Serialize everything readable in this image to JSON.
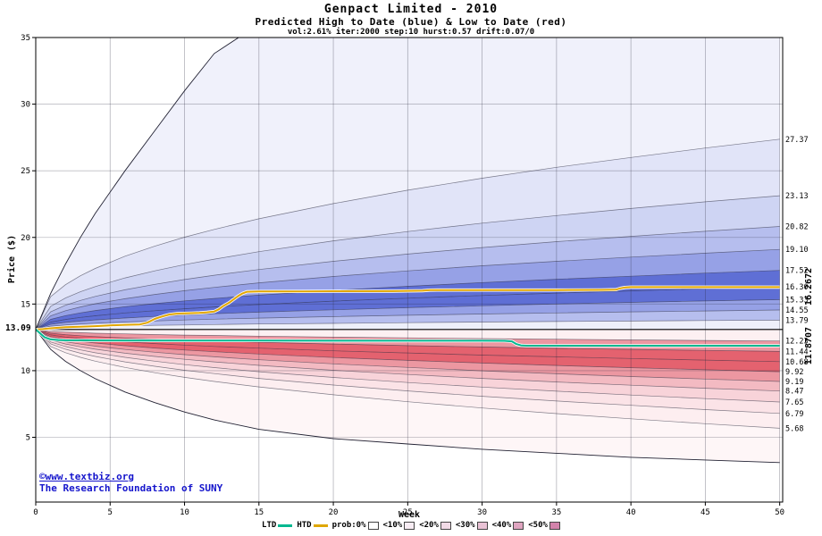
{
  "watermark": {
    "line1": "©www.textbiz.org",
    "line2": "The Research Foundation of SUNY"
  },
  "legend": {
    "items": [
      {
        "label": "LTD",
        "swatch": "line",
        "color": "#00b890",
        "name": "ltd-swatch"
      },
      {
        "label": "HTD",
        "swatch": "line",
        "color": "#dfa700",
        "name": "htd-swatch"
      },
      {
        "label": "prob:0%",
        "swatch": "box",
        "color": "#ffffff",
        "name": "prob-0-swatch"
      },
      {
        "label": "<10%",
        "swatch": "box",
        "color": "#f7ecf3",
        "name": "prob-10-swatch"
      },
      {
        "label": "<20%",
        "swatch": "box",
        "color": "#f1dae6",
        "name": "prob-20-swatch"
      },
      {
        "label": "<30%",
        "swatch": "box",
        "color": "#e9c2d5",
        "name": "prob-30-swatch"
      },
      {
        "label": "<40%",
        "swatch": "box",
        "color": "#dfa5c0",
        "name": "prob-40-swatch"
      },
      {
        "label": "<50%",
        "swatch": "box",
        "color": "#d383ab",
        "name": "prob-50-swatch"
      }
    ]
  },
  "chart_data": {
    "type": "area",
    "title": "Genpact Limited - 2010",
    "subtitle": "Predicted High to Date (blue) &  Low to Date (red)",
    "params": "vol:2.61% iter:2000 step:10 hurst:0.57 drift:0.07/0",
    "xlabel": "Week",
    "ylabel": "Price ($)",
    "start_price": 13.09,
    "start_label": "13.09",
    "xlim": [
      0,
      50.2
    ],
    "ylim": [
      0.14,
      35
    ],
    "x_ticks": [
      0,
      5,
      10,
      15,
      20,
      25,
      30,
      35,
      40,
      45,
      50
    ],
    "y_ticks": [
      5,
      10,
      15,
      20,
      25,
      30,
      35
    ],
    "weeks": [
      0,
      1,
      2,
      3,
      4,
      6,
      8,
      10,
      12,
      15,
      20,
      25,
      30,
      35,
      40,
      45,
      50
    ],
    "curves": {
      "env_max": {
        "env": true,
        "values": [
          13.09,
          15.8,
          18.0,
          20.0,
          21.8,
          25.0,
          28.0,
          31.0,
          33.8,
          36.0,
          36.0,
          36.0,
          36.0,
          36.0,
          36.0,
          36.0,
          36.0
        ]
      },
      "h27": {
        "values": [
          13.09,
          15.55,
          16.45,
          17.12,
          17.67,
          18.59,
          19.34,
          20.02,
          20.6,
          21.4,
          22.54,
          23.54,
          24.44,
          25.26,
          26.0,
          26.71,
          27.37
        ]
      },
      "h23": {
        "values": [
          13.09,
          14.82,
          15.45,
          15.92,
          16.31,
          16.96,
          17.49,
          17.96,
          18.37,
          18.93,
          19.74,
          20.44,
          21.07,
          21.64,
          22.17,
          22.67,
          23.13
        ]
      },
      "h20": {
        "values": [
          13.09,
          14.42,
          14.91,
          15.27,
          15.57,
          16.07,
          16.48,
          16.84,
          17.16,
          17.59,
          18.21,
          18.75,
          19.24,
          19.68,
          20.08,
          20.46,
          20.82
        ]
      },
      "h19": {
        "values": [
          13.09,
          14.12,
          14.5,
          14.78,
          15.02,
          15.4,
          15.72,
          16.0,
          16.25,
          16.59,
          17.07,
          17.49,
          17.87,
          18.21,
          18.52,
          18.82,
          19.1
        ]
      },
      "h17": {
        "values": [
          13.09,
          13.85,
          14.13,
          14.34,
          14.51,
          14.8,
          15.03,
          15.24,
          15.42,
          15.67,
          16.02,
          16.33,
          16.61,
          16.86,
          17.09,
          17.32,
          17.52
        ]
      },
      "h16": {
        "values": [
          13.09,
          13.64,
          13.84,
          14.0,
          14.12,
          14.33,
          14.5,
          14.65,
          14.78,
          14.96,
          15.22,
          15.44,
          15.64,
          15.82,
          15.99,
          16.15,
          16.3
        ]
      },
      "h15": {
        "values": [
          13.09,
          13.48,
          13.62,
          13.72,
          13.81,
          13.95,
          14.07,
          14.18,
          14.27,
          14.39,
          14.57,
          14.73,
          14.87,
          15.0,
          15.12,
          15.23,
          15.33
        ]
      },
      "h14": {
        "values": [
          13.09,
          13.34,
          13.43,
          13.5,
          13.56,
          13.65,
          13.73,
          13.8,
          13.86,
          13.94,
          14.06,
          14.16,
          14.25,
          14.33,
          14.41,
          14.48,
          14.55
        ]
      },
      "h13": {
        "values": [
          13.09,
          13.21,
          13.25,
          13.29,
          13.31,
          13.36,
          13.4,
          13.43,
          13.46,
          13.5,
          13.55,
          13.6,
          13.65,
          13.69,
          13.72,
          13.76,
          13.79
        ]
      },
      "start": {
        "values": [
          13.09,
          13.09,
          13.09,
          13.09,
          13.09,
          13.09,
          13.09,
          13.09,
          13.09,
          13.09,
          13.09,
          13.09,
          13.09,
          13.09,
          13.09,
          13.09,
          13.09
        ]
      },
      "l12": {
        "values": [
          13.09,
          12.94,
          12.89,
          12.85,
          12.81,
          12.76,
          12.71,
          12.67,
          12.64,
          12.59,
          12.52,
          12.46,
          12.41,
          12.36,
          12.31,
          12.27,
          12.23
        ]
      },
      "l11": {
        "values": [
          13.09,
          12.81,
          12.7,
          12.62,
          12.56,
          12.45,
          12.37,
          12.29,
          12.22,
          12.13,
          12.0,
          11.88,
          11.78,
          11.68,
          11.6,
          11.52,
          11.44
        ]
      },
      "l10": {
        "values": [
          13.09,
          12.68,
          12.52,
          12.41,
          12.32,
          12.16,
          12.03,
          11.92,
          11.82,
          11.69,
          11.49,
          11.33,
          11.17,
          11.04,
          10.91,
          10.79,
          10.68
        ]
      },
      "l9b": {
        "values": [
          13.09,
          12.54,
          12.35,
          12.2,
          12.07,
          11.87,
          11.7,
          11.55,
          11.42,
          11.25,
          10.99,
          10.77,
          10.57,
          10.39,
          10.22,
          10.07,
          9.92
        ]
      },
      "l9": {
        "values": [
          13.09,
          12.42,
          12.17,
          11.99,
          11.84,
          11.59,
          11.38,
          11.2,
          11.04,
          10.82,
          10.51,
          10.24,
          9.99,
          9.77,
          9.56,
          9.37,
          9.19
        ]
      },
      "l8": {
        "values": [
          13.09,
          12.3,
          12.0,
          11.79,
          11.61,
          11.31,
          11.07,
          10.85,
          10.66,
          10.4,
          10.03,
          9.71,
          9.42,
          9.15,
          8.91,
          8.68,
          8.47
        ]
      },
      "l7": {
        "values": [
          13.09,
          12.15,
          11.81,
          11.56,
          11.34,
          11.0,
          10.71,
          10.45,
          10.23,
          9.92,
          9.49,
          9.11,
          8.77,
          8.46,
          8.17,
          7.9,
          7.65
        ]
      },
      "l6": {
        "values": [
          13.09,
          12.01,
          11.61,
          11.31,
          11.07,
          10.66,
          10.33,
          10.03,
          9.78,
          9.42,
          8.92,
          8.48,
          8.08,
          7.72,
          7.4,
          7.08,
          6.79
        ]
      },
      "l5": {
        "values": [
          13.09,
          11.82,
          11.35,
          11.0,
          10.71,
          10.24,
          9.85,
          9.5,
          9.19,
          8.78,
          8.19,
          7.67,
          7.2,
          6.78,
          6.39,
          6.02,
          5.68
        ]
      },
      "env_min": {
        "env": true,
        "values": [
          13.09,
          11.6,
          10.7,
          10.0,
          9.4,
          8.4,
          7.6,
          6.9,
          6.3,
          5.6,
          4.9,
          4.5,
          4.1,
          3.8,
          3.5,
          3.3,
          3.1
        ]
      }
    },
    "bands": [
      {
        "upper": "env_max",
        "lower": "h27",
        "color": "#f0f1fb"
      },
      {
        "upper": "h27",
        "lower": "h23",
        "color": "#e1e4f8"
      },
      {
        "upper": "h23",
        "lower": "h20",
        "color": "#ced4f3"
      },
      {
        "upper": "h20",
        "lower": "h19",
        "color": "#b6beee"
      },
      {
        "upper": "h19",
        "lower": "h17",
        "color": "#96a1e6"
      },
      {
        "upper": "h17",
        "lower": "h16",
        "color": "#5f6fd5"
      },
      {
        "upper": "h16",
        "lower": "h15",
        "color": "#5f6fd5"
      },
      {
        "upper": "h15",
        "lower": "h14",
        "color": "#96a1e6"
      },
      {
        "upper": "h14",
        "lower": "h13",
        "color": "#b6beee"
      },
      {
        "upper": "h13",
        "lower": "start",
        "color": "#eef0fa"
      },
      {
        "upper": "start",
        "lower": "l12",
        "color": "#fdf0f2"
      },
      {
        "upper": "l12",
        "lower": "l11",
        "color": "#ec97a1"
      },
      {
        "upper": "l11",
        "lower": "l10",
        "color": "#e4626f"
      },
      {
        "upper": "l10",
        "lower": "l9b",
        "color": "#e4626f"
      },
      {
        "upper": "l9b",
        "lower": "l9",
        "color": "#ec97a1"
      },
      {
        "upper": "l9",
        "lower": "l8",
        "color": "#f3bac2"
      },
      {
        "upper": "l8",
        "lower": "l7",
        "color": "#f8d3d9"
      },
      {
        "upper": "l7",
        "lower": "l6",
        "color": "#fbe3e7"
      },
      {
        "upper": "l6",
        "lower": "l5",
        "color": "#fdeef0"
      },
      {
        "upper": "l5",
        "lower": "env_min",
        "color": "#fef6f7"
      }
    ],
    "right_labels": [
      {
        "text": "27.37",
        "price": 27.37
      },
      {
        "text": "23.13",
        "price": 23.13
      },
      {
        "text": "20.82",
        "price": 20.82
      },
      {
        "text": "19.10",
        "price": 19.1
      },
      {
        "text": "17.52",
        "price": 17.52
      },
      {
        "text": "16.30",
        "price": 16.3
      },
      {
        "text": "15.33",
        "price": 15.33
      },
      {
        "text": "14.55",
        "price": 14.55
      },
      {
        "text": "13.79",
        "price": 13.79
      },
      {
        "text": "12.23",
        "price": 12.23
      },
      {
        "text": "11.44",
        "price": 11.44
      },
      {
        "text": "10.68",
        "price": 10.68
      },
      {
        "text": "9.92",
        "price": 9.92
      },
      {
        "text": "9.19",
        "price": 9.19
      },
      {
        "text": "8.47",
        "price": 8.47
      },
      {
        "text": "7.65",
        "price": 7.65
      },
      {
        "text": "6.79",
        "price": 6.79
      },
      {
        "text": "5.68",
        "price": 5.68
      }
    ],
    "htd": {
      "end_label": "16.2672",
      "end_label_price": 16.3,
      "color": "#e2a600",
      "label_color": "#b8860b",
      "points": [
        [
          0,
          13.09
        ],
        [
          0.5,
          13.12
        ],
        [
          1,
          13.18
        ],
        [
          1.5,
          13.22
        ],
        [
          2,
          13.26
        ],
        [
          3,
          13.3
        ],
        [
          4,
          13.34
        ],
        [
          5,
          13.4
        ],
        [
          6,
          13.44
        ],
        [
          7,
          13.47
        ],
        [
          7.5,
          13.6
        ],
        [
          8,
          13.88
        ],
        [
          8.3,
          14.0
        ],
        [
          8.6,
          14.1
        ],
        [
          9,
          14.22
        ],
        [
          9.5,
          14.28
        ],
        [
          10,
          14.3
        ],
        [
          10.5,
          14.32
        ],
        [
          11,
          14.34
        ],
        [
          11.5,
          14.38
        ],
        [
          12,
          14.44
        ],
        [
          12.3,
          14.6
        ],
        [
          12.6,
          14.85
        ],
        [
          13,
          15.1
        ],
        [
          13.3,
          15.35
        ],
        [
          13.6,
          15.6
        ],
        [
          13.9,
          15.8
        ],
        [
          14.2,
          15.92
        ],
        [
          15,
          15.94
        ],
        [
          18,
          15.95
        ],
        [
          20,
          15.96
        ],
        [
          24,
          15.97
        ],
        [
          26,
          16.0
        ],
        [
          26.5,
          16.04
        ],
        [
          27,
          16.05
        ],
        [
          30,
          16.05
        ],
        [
          35,
          16.05
        ],
        [
          38,
          16.06
        ],
        [
          39,
          16.08
        ],
        [
          39.3,
          16.18
        ],
        [
          39.6,
          16.24
        ],
        [
          40,
          16.27
        ],
        [
          45,
          16.27
        ],
        [
          50,
          16.27
        ]
      ]
    },
    "ltd": {
      "end_label": "11.8707",
      "end_label_price": 11.87,
      "color": "#00b890",
      "label_color": "#009a70",
      "points": [
        [
          0,
          13.09
        ],
        [
          0.3,
          12.8
        ],
        [
          0.6,
          12.5
        ],
        [
          1,
          12.35
        ],
        [
          1.5,
          12.3
        ],
        [
          2,
          12.28
        ],
        [
          5,
          12.27
        ],
        [
          10,
          12.26
        ],
        [
          15,
          12.26
        ],
        [
          20,
          12.25
        ],
        [
          25,
          12.25
        ],
        [
          30,
          12.25
        ],
        [
          31.5,
          12.24
        ],
        [
          32,
          12.2
        ],
        [
          32.3,
          12.0
        ],
        [
          32.6,
          11.9
        ],
        [
          33,
          11.87
        ],
        [
          40,
          11.87
        ],
        [
          45,
          11.87
        ],
        [
          50,
          11.87
        ]
      ]
    }
  }
}
